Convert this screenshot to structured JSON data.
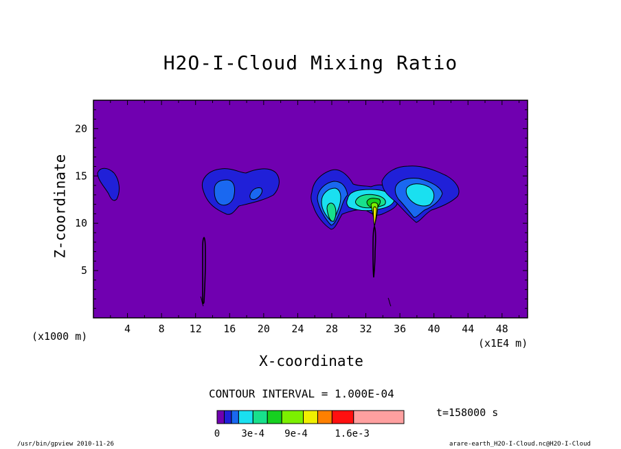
{
  "chart_data": {
    "type": "contour",
    "title": "H2O-I-Cloud Mixing Ratio",
    "xlabel": "X-coordinate",
    "ylabel": "Z-coordinate",
    "x_unit_left": "(x1000 m)",
    "x_unit_right": "(x1E4 m)",
    "xlim": [
      0,
      51
    ],
    "ylim": [
      0,
      23
    ],
    "x_ticks": [
      "4",
      "8",
      "12",
      "16",
      "20",
      "24",
      "28",
      "32",
      "36",
      "40",
      "44",
      "48"
    ],
    "x_tick_values": [
      4,
      8,
      12,
      16,
      20,
      24,
      28,
      32,
      36,
      40,
      44,
      48
    ],
    "y_ticks": [
      "5",
      "10",
      "15",
      "20"
    ],
    "y_tick_values": [
      5,
      10,
      15,
      20
    ],
    "contour_interval": "CONTOUR INTERVAL = 1.000E-04",
    "time": "t=158000 s",
    "background_color": "#7000b0",
    "colorbar": {
      "colors": [
        "#7000b0",
        "#2020d8",
        "#1a68f0",
        "#1ae0f0",
        "#18e08c",
        "#16d020",
        "#7cf000",
        "#f0f000",
        "#ff8000",
        "#ff1010",
        "#ffa0a0"
      ],
      "labels": [
        "0",
        "3e-4",
        "9e-4",
        "1.6e-3"
      ],
      "label_positions": [
        0,
        3,
        9,
        16
      ],
      "max": 26
    },
    "features": [
      {
        "name": "cloud-left-edge",
        "max_level": 1
      },
      {
        "name": "cloud-x16",
        "max_level": 2
      },
      {
        "name": "cloud-x28-32",
        "max_level": 5
      },
      {
        "name": "cloud-x38",
        "max_level": 3
      },
      {
        "name": "updraft-x13",
        "max_level": 0
      },
      {
        "name": "updraft-x33",
        "max_level": 0
      }
    ]
  },
  "footer": {
    "left": "/usr/bin/gpview  2010-11-26",
    "right": "arare-earth_H2O-I-Cloud.nc@H2O-I-Cloud"
  }
}
